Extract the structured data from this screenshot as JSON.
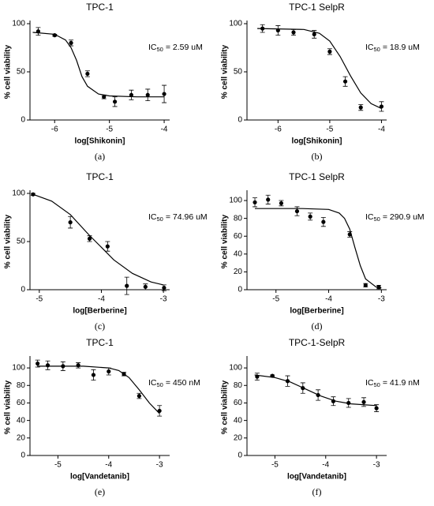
{
  "chart_data": [
    {
      "type": "scatter",
      "title": "TPC-1",
      "xlabel": "log[Shikonin]",
      "ylabel": "% cell viability",
      "annotation": [
        "IC",
        "50",
        "= 2.59 uM"
      ],
      "caption": "(a)",
      "xlim": [
        -6.45,
        -3.9
      ],
      "ylim": [
        0,
        100
      ],
      "xticks": [
        -6,
        -5,
        -4
      ],
      "yticks": [
        0,
        50,
        100
      ],
      "color": "#000000",
      "x": [
        -6.3,
        -6.0,
        -5.7,
        -5.4,
        -5.1,
        -4.9,
        -4.6,
        -4.3,
        -4.0
      ],
      "values": [
        92,
        88,
        80,
        48,
        24,
        19,
        26,
        26,
        27
      ],
      "errors": [
        4,
        1,
        3,
        3,
        2,
        5,
        5,
        6,
        9
      ],
      "fit": {
        "x": [
          -6.4,
          -6.0,
          -5.8,
          -5.7,
          -5.6,
          -5.5,
          -5.4,
          -5.2,
          -5.0,
          -4.5,
          -4.0
        ],
        "values": [
          91,
          89,
          83,
          75,
          62,
          45,
          35,
          27,
          25,
          24,
          24
        ]
      }
    },
    {
      "type": "scatter",
      "title": "TPC-1 SelpR",
      "xlabel": "log[Shikonin]",
      "ylabel": "% cell viability",
      "annotation": [
        "IC",
        "50",
        "= 18.9 uM"
      ],
      "caption": "(b)",
      "xlim": [
        -6.6,
        -3.9
      ],
      "ylim": [
        0,
        100
      ],
      "xticks": [
        -6,
        -5,
        -4
      ],
      "yticks": [
        0,
        50,
        100
      ],
      "color": "#000000",
      "x": [
        -6.3,
        -6.0,
        -5.7,
        -5.3,
        -5.0,
        -4.7,
        -4.4,
        -4.0
      ],
      "values": [
        95,
        93,
        91,
        89,
        71,
        40,
        13,
        14
      ],
      "errors": [
        4,
        5,
        3,
        4,
        3,
        5,
        3,
        5
      ],
      "fit": {
        "x": [
          -6.4,
          -5.5,
          -5.2,
          -5.0,
          -4.8,
          -4.6,
          -4.4,
          -4.2,
          -4.0
        ],
        "values": [
          95,
          94,
          90,
          82,
          66,
          46,
          28,
          17,
          12
        ]
      }
    },
    {
      "type": "scatter",
      "title": "TPC-1",
      "xlabel": "log[Berberine]",
      "ylabel": "% cell viability",
      "annotation": [
        "IC",
        "50",
        "= 74.96 uM"
      ],
      "caption": "(c)",
      "xlim": [
        -5.15,
        -2.9
      ],
      "ylim": [
        0,
        100
      ],
      "xticks": [
        -5,
        -4,
        -3
      ],
      "yticks": [
        0,
        50,
        100
      ],
      "color": "#000000",
      "x": [
        -5.1,
        -4.5,
        -4.19,
        -3.9,
        -3.59,
        -3.29,
        -2.99
      ],
      "values": [
        99,
        70,
        53,
        45,
        4,
        3,
        2
      ],
      "errors": [
        1,
        6,
        3,
        5,
        9,
        3,
        3
      ],
      "fit": {
        "x": [
          -5.1,
          -4.8,
          -4.5,
          -4.2,
          -4.0,
          -3.8,
          -3.5,
          -3.2,
          -3.0
        ],
        "values": [
          99,
          92,
          78,
          57,
          44,
          31,
          17,
          8,
          5
        ]
      }
    },
    {
      "type": "scatter",
      "title": "TPC-1 SelpR",
      "xlabel": "log[Berberine]",
      "ylabel": "% cell viability",
      "annotation": [
        "IC",
        "50",
        "= 290.9 uM"
      ],
      "caption": "(d)",
      "xlim": [
        -5.55,
        -2.9
      ],
      "ylim": [
        0,
        108
      ],
      "xticks": [
        -5,
        -4,
        -3
      ],
      "yticks": [
        0,
        20,
        40,
        60,
        80,
        100
      ],
      "color": "#000000",
      "x": [
        -5.4,
        -5.15,
        -4.9,
        -4.6,
        -4.35,
        -4.1,
        -3.6,
        -3.3,
        -3.05
      ],
      "values": [
        98,
        101,
        97,
        88,
        82,
        76,
        62,
        5,
        3
      ],
      "errors": [
        5,
        5,
        3,
        5,
        4,
        5,
        3,
        2,
        2
      ],
      "fit": {
        "x": [
          -5.4,
          -4.5,
          -4.0,
          -3.8,
          -3.7,
          -3.6,
          -3.5,
          -3.4,
          -3.3,
          -3.1,
          -3.0
        ],
        "values": [
          91,
          91,
          90,
          86,
          80,
          68,
          47,
          27,
          12,
          3,
          2
        ]
      }
    },
    {
      "type": "scatter",
      "title": "TPC-1",
      "xlabel": "log[Vandetanib]",
      "ylabel": "% cell viability",
      "annotation": [
        "IC",
        "50",
        "= 450 nM"
      ],
      "caption": "(e)",
      "xlim": [
        -5.55,
        -2.8
      ],
      "ylim": [
        0,
        110
      ],
      "xticks": [
        -5,
        -4,
        -3
      ],
      "yticks": [
        0,
        20,
        40,
        60,
        80,
        100
      ],
      "color": "#000000",
      "x": [
        -5.4,
        -5.2,
        -4.9,
        -4.6,
        -4.3,
        -4.0,
        -3.7,
        -3.4,
        -3.0
      ],
      "values": [
        105,
        103,
        102,
        103,
        92,
        96,
        93,
        68,
        51
      ],
      "errors": [
        4,
        5,
        5,
        3,
        6,
        4,
        2,
        3,
        6
      ],
      "fit": {
        "x": [
          -5.4,
          -4.5,
          -4.0,
          -3.8,
          -3.6,
          -3.4,
          -3.2,
          -3.0
        ],
        "values": [
          102,
          102,
          100,
          97,
          89,
          75,
          60,
          48
        ]
      }
    },
    {
      "type": "scatter",
      "title": "TPC-1-SelpR",
      "xlabel": "log[Vandetanib]",
      "ylabel": "% cell viability",
      "annotation": [
        "IC",
        "50",
        "= 41.9 nM"
      ],
      "caption": "(f)",
      "xlim": [
        -5.55,
        -2.8
      ],
      "ylim": [
        0,
        110
      ],
      "xticks": [
        -5,
        -4,
        -3
      ],
      "yticks": [
        0,
        20,
        40,
        60,
        80,
        100
      ],
      "color": "#000000",
      "x": [
        -5.35,
        -5.05,
        -4.75,
        -4.45,
        -4.15,
        -3.85,
        -3.55,
        -3.25,
        -3.0
      ],
      "values": [
        90,
        91,
        85,
        77,
        69,
        62,
        60,
        61,
        54
      ],
      "errors": [
        4,
        1,
        6,
        6,
        6,
        5,
        5,
        5,
        4
      ],
      "fit": {
        "x": [
          -5.4,
          -5.0,
          -4.7,
          -4.4,
          -4.1,
          -3.8,
          -3.5,
          -3.0
        ],
        "values": [
          92,
          89,
          84,
          76,
          68,
          62,
          59,
          57
        ]
      }
    }
  ]
}
